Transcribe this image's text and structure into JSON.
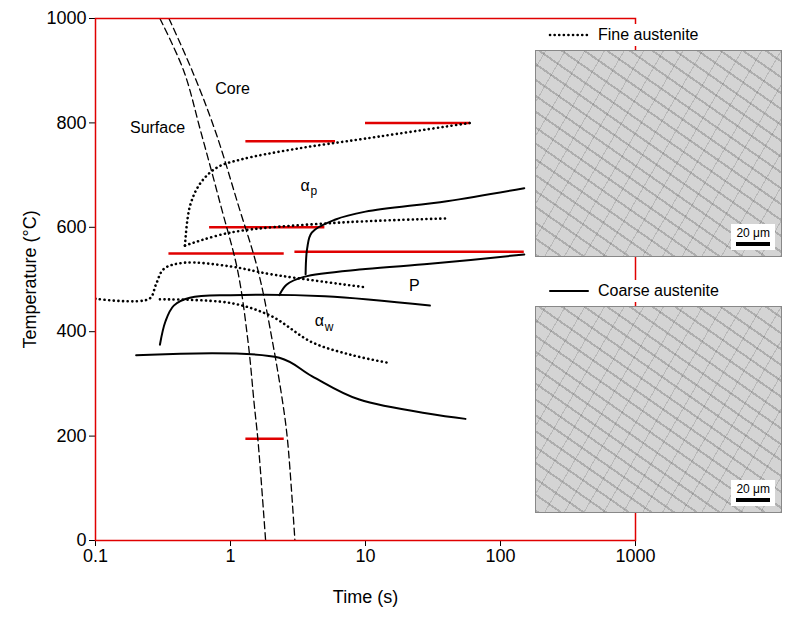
{
  "chart_data": {
    "type": "line",
    "x_label": "Time (s)",
    "y_label": "Temperature (°C)",
    "log": "x",
    "xlim": [
      0.1,
      1000
    ],
    "xticks": [
      0.1,
      1,
      10,
      100,
      1000
    ],
    "ylim": [
      0,
      1000
    ],
    "yticks": [
      0,
      200,
      400,
      600,
      800,
      1000
    ],
    "legend": "top-right",
    "series": [
      {
        "name": "Fine austenite",
        "color": "#000000",
        "line_style": "dotted",
        "scale_bar": "20 μm",
        "curves": [
          {
            "x": [
              0.46,
              0.5,
              0.6,
              0.8,
              1.2,
              3,
              10,
              60
            ],
            "values": [
              565,
              640,
              685,
              715,
              730,
              750,
              770,
              800
            ]
          },
          {
            "x": [
              0.46,
              1,
              5.5,
              40
            ],
            "values": [
              565,
              590,
              608,
              617
            ]
          },
          {
            "x": [
              0.1,
              0.25,
              0.28,
              0.32,
              0.45,
              1,
              2,
              10
            ],
            "values": [
              463,
              463,
              490,
              520,
              532,
              525,
              510,
              485
            ]
          },
          {
            "x": [
              0.3,
              1,
              2,
              4,
              8,
              15
            ],
            "values": [
              462,
              455,
              430,
              380,
              355,
              340
            ]
          }
        ]
      },
      {
        "name": "Coarse austenite",
        "color": "#000000",
        "line_style": "solid",
        "scale_bar": "20 μm",
        "curves": [
          {
            "x": [
              3.6,
              3.7,
              4,
              6,
              10,
              40,
              150
            ],
            "values": [
              510,
              560,
              590,
              615,
              630,
              650,
              675
            ]
          },
          {
            "x": [
              2.3,
              2.6,
              3.5,
              10,
              30,
              150
            ],
            "values": [
              470,
              490,
              505,
              520,
              530,
              548
            ]
          },
          {
            "x": [
              0.3,
              0.33,
              0.38,
              0.5,
              1,
              5,
              30
            ],
            "values": [
              375,
              420,
              450,
              465,
              470,
              468,
              450
            ]
          },
          {
            "x": [
              0.2,
              2.3,
              4,
              9,
              55
            ],
            "values": [
              355,
              350,
              315,
              270,
              233
            ]
          }
        ]
      }
    ],
    "cooling_curves": [
      {
        "color": "#000000",
        "line_style": "dashed",
        "x": [
          0.3,
          0.45,
          0.6,
          0.85,
          1.13,
          1.35,
          1.5,
          1.6,
          1.82
        ],
        "values": [
          1000,
          900,
          785,
          640,
          517,
          380,
          260,
          190,
          0
        ]
      },
      {
        "color": "#000000",
        "line_style": "dashed",
        "x": [
          0.35,
          0.52,
          0.77,
          1.15,
          1.6,
          2.05,
          2.45,
          2.65,
          3.0
        ],
        "values": [
          1000,
          900,
          785,
          640,
          517,
          380,
          260,
          190,
          0
        ]
      }
    ],
    "reference_lines": [
      {
        "y": 800,
        "x": [
          10,
          60
        ]
      },
      {
        "y": 765,
        "x": [
          1.3,
          6
        ]
      },
      {
        "y": 600,
        "x": [
          0.7,
          5
        ]
      },
      {
        "y": 550,
        "x": [
          0.35,
          2.5
        ]
      },
      {
        "y": 553,
        "x": [
          3,
          150
        ]
      },
      {
        "y": 195,
        "x": [
          1.3,
          2.5
        ]
      }
    ],
    "annotations": [
      {
        "text": "Surface",
        "x": 0.18,
        "y": 791
      },
      {
        "text": "Core",
        "x": 0.77,
        "y": 866
      },
      {
        "text": "α",
        "subscript": "p",
        "x": 3.3,
        "y": 680
      },
      {
        "text": "P",
        "x": 21,
        "y": 488
      },
      {
        "text": "α",
        "subscript": "w",
        "x": 4.2,
        "y": 420
      }
    ]
  }
}
